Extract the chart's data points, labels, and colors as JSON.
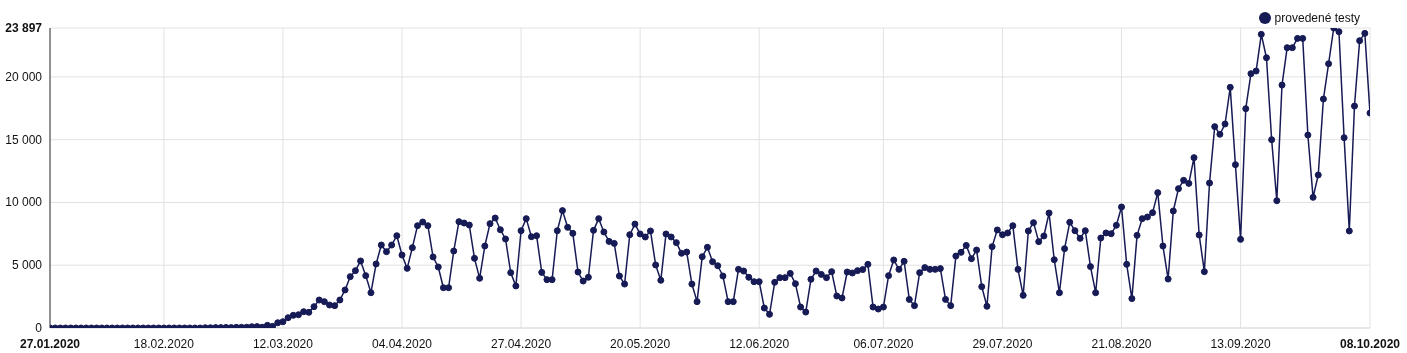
{
  "chart_data": {
    "type": "line",
    "x": [
      "2020-01-27",
      "2020-01-28",
      "2020-01-29",
      "2020-01-30",
      "2020-01-31",
      "2020-02-01",
      "2020-02-02",
      "2020-02-03",
      "2020-02-04",
      "2020-02-05",
      "2020-02-06",
      "2020-02-07",
      "2020-02-08",
      "2020-02-09",
      "2020-02-10",
      "2020-02-11",
      "2020-02-12",
      "2020-02-13",
      "2020-02-14",
      "2020-02-15",
      "2020-02-16",
      "2020-02-17",
      "2020-02-18",
      "2020-02-19",
      "2020-02-20",
      "2020-02-21",
      "2020-02-22",
      "2020-02-23",
      "2020-02-24",
      "2020-02-25",
      "2020-02-26",
      "2020-02-27",
      "2020-02-28",
      "2020-02-29",
      "2020-03-01",
      "2020-03-02",
      "2020-03-03",
      "2020-03-04",
      "2020-03-05",
      "2020-03-06",
      "2020-03-07",
      "2020-03-08",
      "2020-03-09",
      "2020-03-10",
      "2020-03-11",
      "2020-03-12",
      "2020-03-13",
      "2020-03-14",
      "2020-03-15",
      "2020-03-16",
      "2020-03-17",
      "2020-03-18",
      "2020-03-19",
      "2020-03-20",
      "2020-03-21",
      "2020-03-22",
      "2020-03-23",
      "2020-03-24",
      "2020-03-25",
      "2020-03-26",
      "2020-03-27",
      "2020-03-28",
      "2020-03-29",
      "2020-03-30",
      "2020-03-31",
      "2020-04-01",
      "2020-04-02",
      "2020-04-03",
      "2020-04-04",
      "2020-04-05",
      "2020-04-06",
      "2020-04-07",
      "2020-04-08",
      "2020-04-09",
      "2020-04-10",
      "2020-04-11",
      "2020-04-12",
      "2020-04-13",
      "2020-04-14",
      "2020-04-15",
      "2020-04-16",
      "2020-04-17",
      "2020-04-18",
      "2020-04-19",
      "2020-04-20",
      "2020-04-21",
      "2020-04-22",
      "2020-04-23",
      "2020-04-24",
      "2020-04-25",
      "2020-04-26",
      "2020-04-27",
      "2020-04-28",
      "2020-04-29",
      "2020-04-30",
      "2020-05-01",
      "2020-05-02",
      "2020-05-03",
      "2020-05-04",
      "2020-05-05",
      "2020-05-06",
      "2020-05-07",
      "2020-05-08",
      "2020-05-09",
      "2020-05-10",
      "2020-05-11",
      "2020-05-12",
      "2020-05-13",
      "2020-05-14",
      "2020-05-15",
      "2020-05-16",
      "2020-05-17",
      "2020-05-18",
      "2020-05-19",
      "2020-05-20",
      "2020-05-21",
      "2020-05-22",
      "2020-05-23",
      "2020-05-24",
      "2020-05-25",
      "2020-05-26",
      "2020-05-27",
      "2020-05-28",
      "2020-05-29",
      "2020-05-30",
      "2020-05-31",
      "2020-06-01",
      "2020-06-02",
      "2020-06-03",
      "2020-06-04",
      "2020-06-05",
      "2020-06-06",
      "2020-06-07",
      "2020-06-08",
      "2020-06-09",
      "2020-06-10",
      "2020-06-11",
      "2020-06-12",
      "2020-06-13",
      "2020-06-14",
      "2020-06-15",
      "2020-06-16",
      "2020-06-17",
      "2020-06-18",
      "2020-06-19",
      "2020-06-20",
      "2020-06-21",
      "2020-06-22",
      "2020-06-23",
      "2020-06-24",
      "2020-06-25",
      "2020-06-26",
      "2020-06-27",
      "2020-06-28",
      "2020-06-29",
      "2020-06-30",
      "2020-07-01",
      "2020-07-02",
      "2020-07-03",
      "2020-07-04",
      "2020-07-05",
      "2020-07-06",
      "2020-07-07",
      "2020-07-08",
      "2020-07-09",
      "2020-07-10",
      "2020-07-11",
      "2020-07-12",
      "2020-07-13",
      "2020-07-14",
      "2020-07-15",
      "2020-07-16",
      "2020-07-17",
      "2020-07-18",
      "2020-07-19",
      "2020-07-20",
      "2020-07-21",
      "2020-07-22",
      "2020-07-23",
      "2020-07-24",
      "2020-07-25",
      "2020-07-26",
      "2020-07-27",
      "2020-07-28",
      "2020-07-29",
      "2020-07-30",
      "2020-07-31",
      "2020-08-01",
      "2020-08-02",
      "2020-08-03",
      "2020-08-04",
      "2020-08-05",
      "2020-08-06",
      "2020-08-07",
      "2020-08-08",
      "2020-08-09",
      "2020-08-10",
      "2020-08-11",
      "2020-08-12",
      "2020-08-13",
      "2020-08-14",
      "2020-08-15",
      "2020-08-16",
      "2020-08-17",
      "2020-08-18",
      "2020-08-19",
      "2020-08-20",
      "2020-08-21",
      "2020-08-22",
      "2020-08-23",
      "2020-08-24",
      "2020-08-25",
      "2020-08-26",
      "2020-08-27",
      "2020-08-28",
      "2020-08-29",
      "2020-08-30",
      "2020-08-31",
      "2020-09-01",
      "2020-09-02",
      "2020-09-03",
      "2020-09-04",
      "2020-09-05",
      "2020-09-06",
      "2020-09-07",
      "2020-09-08",
      "2020-09-09",
      "2020-09-10",
      "2020-09-11",
      "2020-09-12",
      "2020-09-13",
      "2020-09-14",
      "2020-09-15",
      "2020-09-16",
      "2020-09-17",
      "2020-09-18",
      "2020-09-19",
      "2020-09-20",
      "2020-09-21",
      "2020-09-22",
      "2020-09-23",
      "2020-09-24",
      "2020-09-25",
      "2020-09-26",
      "2020-09-27",
      "2020-09-28",
      "2020-09-29",
      "2020-09-30",
      "2020-10-01",
      "2020-10-02",
      "2020-10-03",
      "2020-10-04",
      "2020-10-05",
      "2020-10-06",
      "2020-10-07",
      "2020-10-08"
    ],
    "series": [
      {
        "name": "provedené testy",
        "color": "#161a55",
        "values": [
          0,
          0,
          0,
          0,
          0,
          0,
          0,
          0,
          0,
          0,
          0,
          0,
          0,
          0,
          0,
          0,
          0,
          0,
          0,
          0,
          0,
          0,
          0,
          0,
          0,
          0,
          0,
          0,
          0,
          0,
          20,
          20,
          30,
          30,
          40,
          30,
          50,
          50,
          60,
          100,
          110,
          60,
          210,
          130,
          420,
          500,
          820,
          1010,
          1060,
          1300,
          1250,
          1700,
          2230,
          2100,
          1830,
          1780,
          2230,
          3030,
          4090,
          4570,
          5340,
          4170,
          2810,
          5100,
          6610,
          6080,
          6610,
          7350,
          5810,
          4750,
          6400,
          8150,
          8440,
          8150,
          5660,
          4860,
          3210,
          3210,
          6130,
          8470,
          8360,
          8200,
          5550,
          3960,
          6530,
          8310,
          8760,
          7830,
          7090,
          4410,
          3350,
          7750,
          8710,
          7270,
          7350,
          4430,
          3850,
          3850,
          7750,
          9350,
          8020,
          7540,
          4460,
          3740,
          4040,
          7780,
          8710,
          7650,
          6900,
          6740,
          4140,
          3500,
          7430,
          8280,
          7490,
          7250,
          7730,
          5020,
          3800,
          7490,
          7250,
          6800,
          5950,
          6050,
          3500,
          2100,
          5680,
          6430,
          5280,
          4960,
          4140,
          2100,
          2100,
          4670,
          4540,
          4040,
          3690,
          3690,
          1590,
          1090,
          3640,
          4010,
          4010,
          4350,
          3530,
          1670,
          1270,
          3880,
          4540,
          4270,
          4010,
          4490,
          2550,
          2390,
          4460,
          4380,
          4570,
          4650,
          5070,
          1670,
          1510,
          1670,
          4170,
          5420,
          4670,
          5310,
          2280,
          1780,
          4410,
          4810,
          4670,
          4670,
          4730,
          2280,
          1780,
          5730,
          6030,
          6580,
          5520,
          6210,
          3290,
          1730,
          6480,
          7810,
          7430,
          7570,
          8150,
          4670,
          2600,
          7730,
          8390,
          6880,
          7330,
          9160,
          5440,
          2810,
          6320,
          8420,
          7750,
          7140,
          7750,
          4890,
          2810,
          7170,
          7570,
          7510,
          8180,
          9640,
          5070,
          2340,
          7380,
          8710,
          8840,
          9190,
          10780,
          6530,
          3900,
          9320,
          11100,
          11760,
          11520,
          13570,
          7410,
          4490,
          11550,
          16040,
          15430,
          16250,
          19170,
          13010,
          7060,
          17470,
          20260,
          20470,
          23390,
          21530,
          15000,
          10140,
          19350,
          22330,
          22330,
          23070,
          23070,
          15370,
          10410,
          12190,
          18240,
          21050,
          23897,
          23600,
          15160,
          7730,
          17680,
          22890,
          23470,
          17120
        ]
      }
    ],
    "xlim": [
      "2020-01-27",
      "2020-10-08"
    ],
    "xticks": [
      {
        "value": "2020-01-27",
        "label": "27.01.2020"
      },
      {
        "value": "2020-02-18",
        "label": "18.02.2020"
      },
      {
        "value": "2020-03-12",
        "label": "12.03.2020"
      },
      {
        "value": "2020-04-04",
        "label": "04.04.2020"
      },
      {
        "value": "2020-04-27",
        "label": "27.04.2020"
      },
      {
        "value": "2020-05-20",
        "label": "20.05.2020"
      },
      {
        "value": "2020-06-12",
        "label": "12.06.2020"
      },
      {
        "value": "2020-07-06",
        "label": "06.07.2020"
      },
      {
        "value": "2020-07-29",
        "label": "29.07.2020"
      },
      {
        "value": "2020-08-21",
        "label": "21.08.2020"
      },
      {
        "value": "2020-09-13",
        "label": "13.09.2020"
      },
      {
        "value": "2020-10-08",
        "label": "08.10.2020"
      }
    ],
    "ylim": [
      0,
      23897
    ],
    "yticks": [
      0,
      {
        "value": 5000,
        "label": "5 000"
      },
      {
        "value": 10000,
        "label": "10 000"
      },
      {
        "value": 15000,
        "label": "15 000"
      },
      {
        "value": 20000,
        "label": "20 000"
      },
      {
        "value": 23897,
        "label": "23 897"
      }
    ],
    "grid": true,
    "legend": "top right",
    "marker": "circle",
    "line_style": "solid"
  }
}
